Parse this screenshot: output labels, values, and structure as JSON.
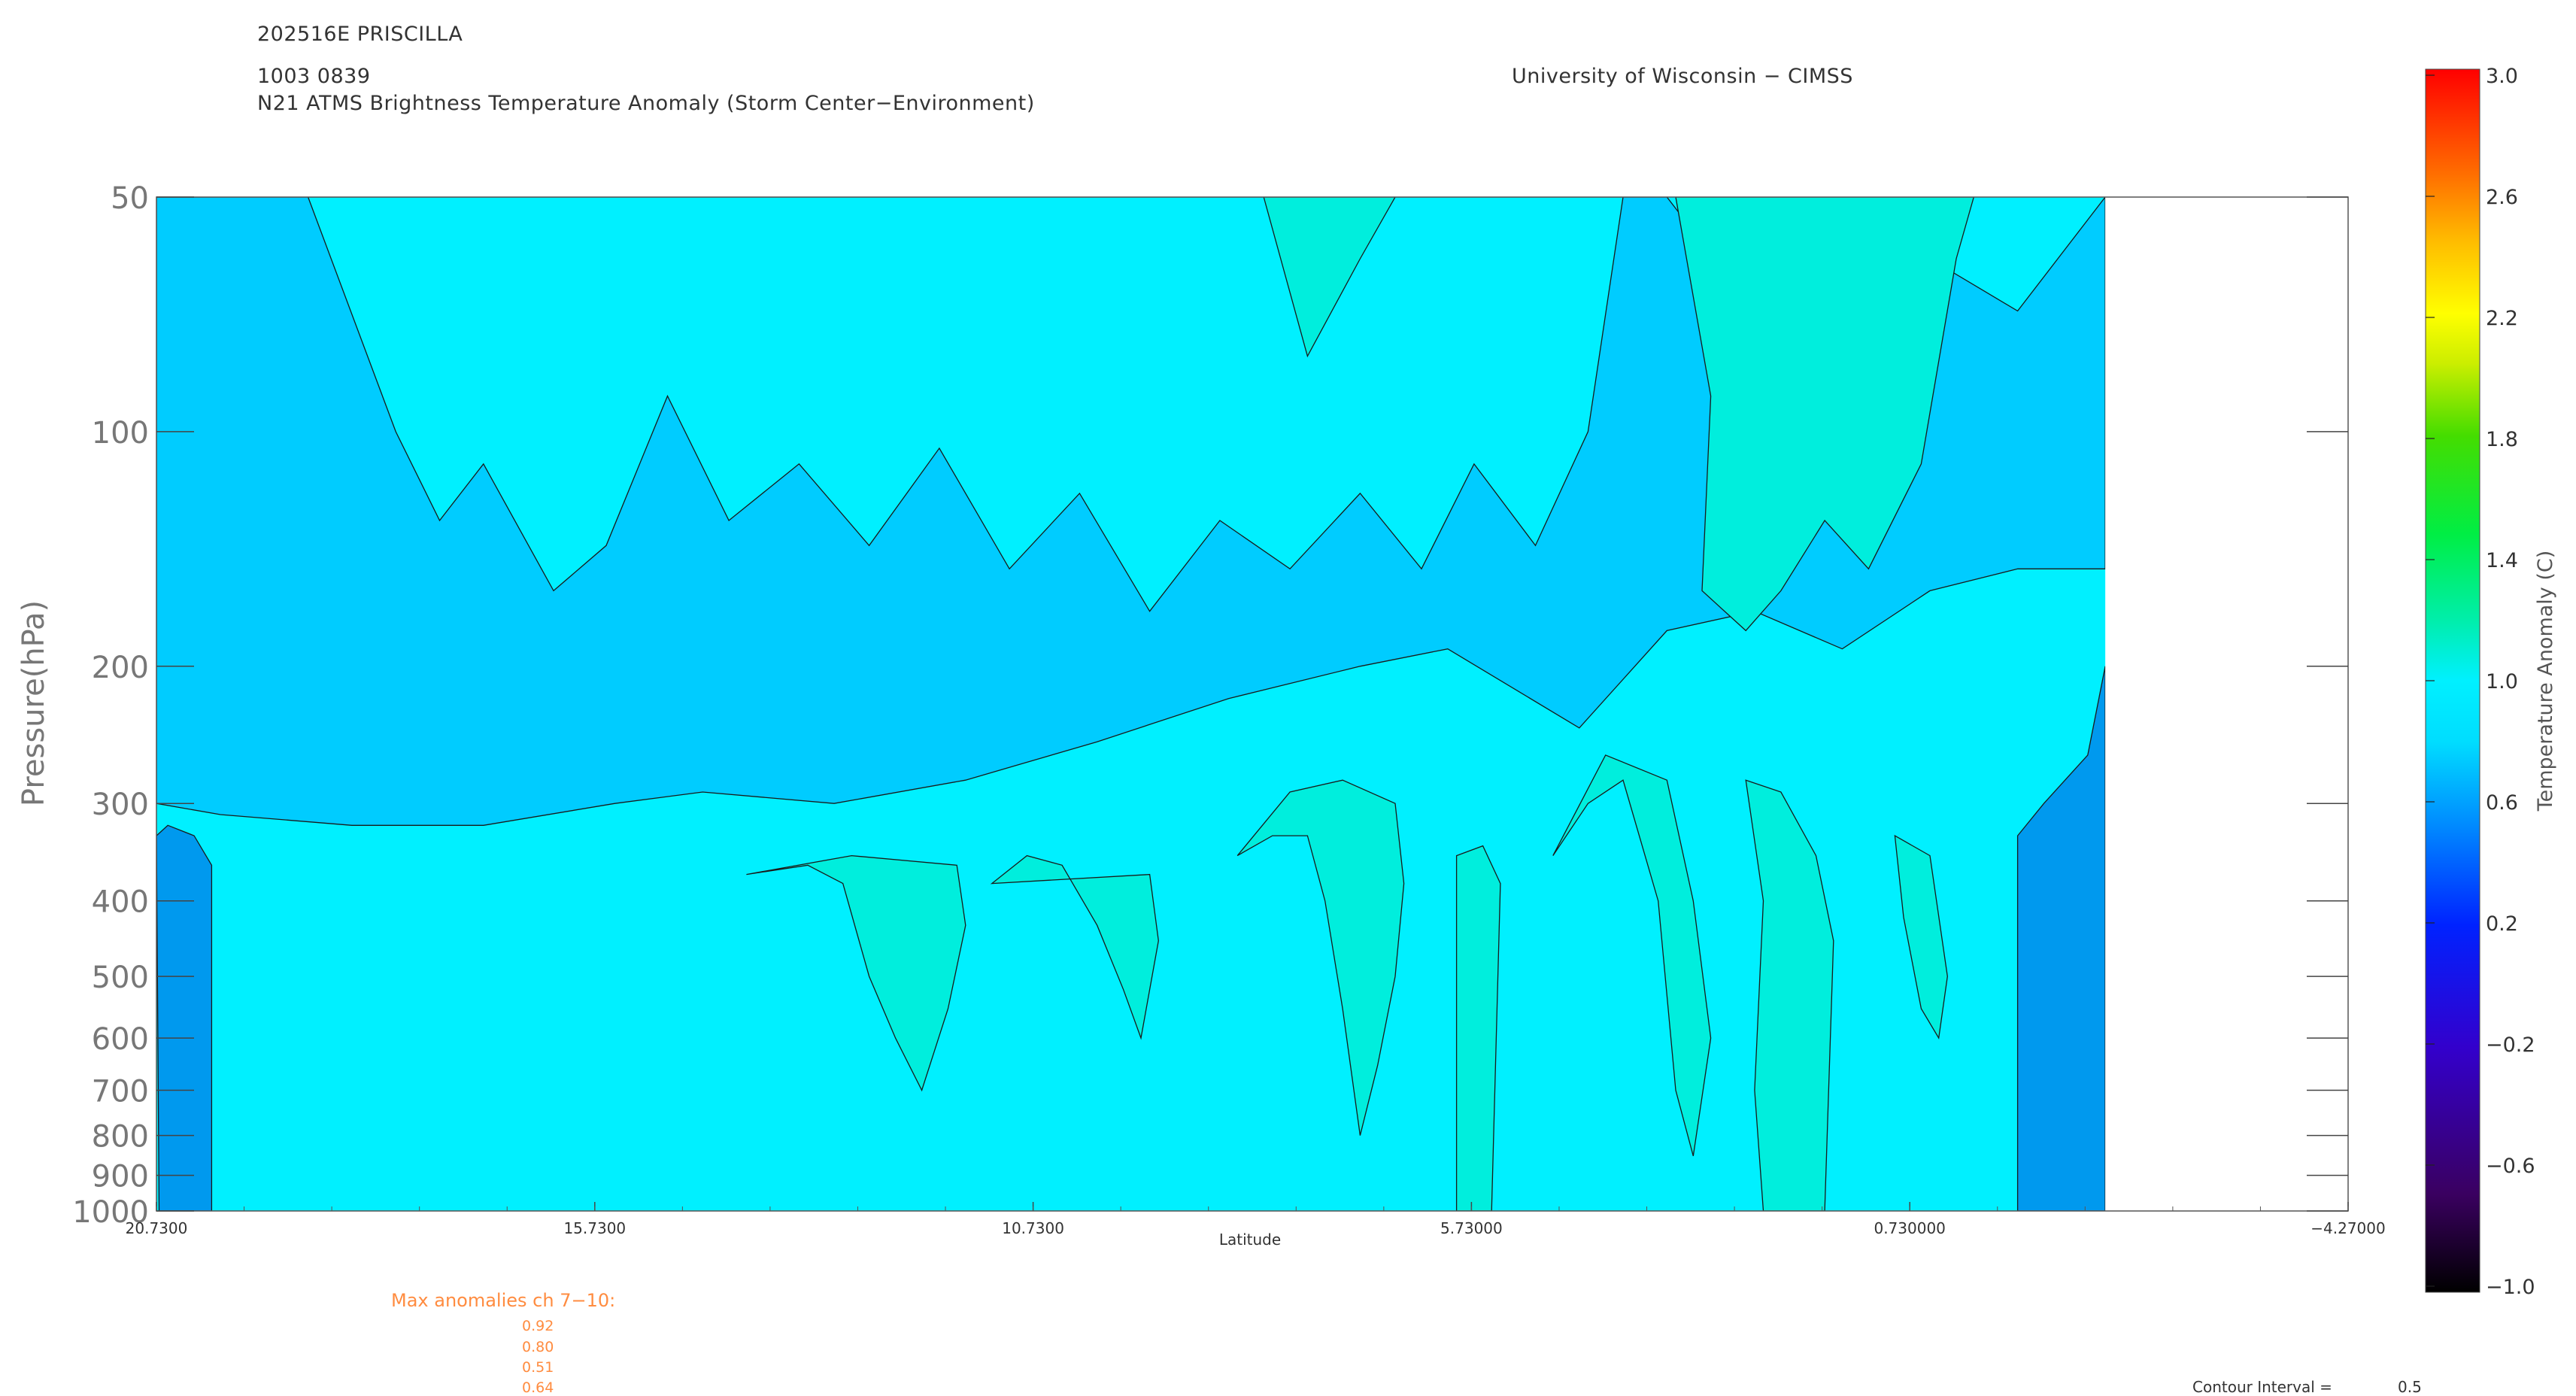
{
  "header": {
    "storm_id": "202516E PRISCILLA",
    "datetime": "1003 0839",
    "product": "N21 ATMS Brightness Temperature Anomaly (Storm Center−Environment)",
    "institution": "University of Wisconsin − CIMSS"
  },
  "chart_data": {
    "type": "heatmap",
    "ylabel": "Pressure(hPa)",
    "xlabel": "Latitude",
    "y_scale": "log",
    "y_ticks": [
      50,
      100,
      200,
      300,
      400,
      500,
      600,
      700,
      800,
      900,
      1000
    ],
    "y_tick_labels": [
      "50",
      "100",
      "200",
      "300",
      "400",
      "500",
      "600",
      "700",
      "800",
      "900",
      "1000"
    ],
    "x_ticks": [
      20.73,
      15.73,
      10.73,
      5.73,
      0.73,
      -4.27
    ],
    "x_tick_labels": [
      "20.7300",
      "15.7300",
      "10.7300",
      "5.73000",
      "0.730000",
      "−4.27000"
    ],
    "xlim": [
      20.73,
      -4.27
    ],
    "ylim": [
      1000,
      50
    ],
    "data_extent_lat": [
      20.73,
      -1.5
    ],
    "colorbar": {
      "label": "Temperature Anomaly (C)",
      "range": [
        -1.0,
        3.0
      ],
      "ticks": [
        3.0,
        2.6,
        2.2,
        1.8,
        1.4,
        1.0,
        0.6,
        0.2,
        -0.2,
        -0.6,
        -1.0
      ],
      "tick_labels": [
        "3.0",
        "2.6",
        "2.2",
        "1.8",
        "1.4",
        "1.0",
        "0.6",
        "0.2",
        "−0.2",
        "−0.6",
        "−1.0"
      ]
    },
    "contour_interval_label": "Contour Interval =",
    "contour_interval": "0.5",
    "colors": {
      "band_0_4": "#0099ee",
      "band_0_5": "#00ccff",
      "band_0_6": "#00f0ff",
      "band_0_7": "#00eedd",
      "band_0_8": "#00f5b0",
      "contour_line": "#1a1a1a",
      "orange_text": "#ff8c40"
    },
    "bands": [
      {
        "name": "upper-dark-blue",
        "level": 0.4,
        "points": [
          [
            20.73,
            50
          ],
          [
            19.0,
            50
          ],
          [
            19.5,
            70
          ],
          [
            20.0,
            110
          ],
          [
            20.4,
            85
          ],
          [
            20.73,
            70
          ]
        ]
      },
      {
        "name": "upper-blue-region",
        "level": 0.5,
        "points": [
          [
            20.73,
            110
          ],
          [
            20.73,
            300
          ],
          [
            20.0,
            310
          ],
          [
            18.5,
            320
          ],
          [
            17.0,
            320
          ],
          [
            15.5,
            300
          ],
          [
            14.5,
            290
          ],
          [
            13.0,
            300
          ],
          [
            11.5,
            280
          ],
          [
            10.0,
            250
          ],
          [
            8.5,
            220
          ],
          [
            7.0,
            200
          ],
          [
            6.0,
            190
          ],
          [
            4.5,
            240
          ],
          [
            3.5,
            180
          ],
          [
            2.5,
            170
          ],
          [
            1.5,
            190
          ],
          [
            0.5,
            160
          ],
          [
            -0.5,
            150
          ],
          [
            -1.5,
            150
          ],
          [
            -1.5,
            50
          ],
          [
            -0.5,
            70
          ],
          [
            0.5,
            60
          ],
          [
            1.5,
            100
          ],
          [
            2.5,
            70
          ],
          [
            3.5,
            50
          ],
          [
            20.73,
            50
          ]
        ]
      },
      {
        "name": "upper-light-cyan-zone",
        "level": 0.6,
        "points": [
          [
            19.0,
            50
          ],
          [
            18.0,
            100
          ],
          [
            17.5,
            130
          ],
          [
            17.0,
            110
          ],
          [
            16.2,
            160
          ],
          [
            15.6,
            140
          ],
          [
            14.9,
            90
          ],
          [
            14.2,
            130
          ],
          [
            13.4,
            110
          ],
          [
            12.6,
            140
          ],
          [
            11.8,
            105
          ],
          [
            11.0,
            150
          ],
          [
            10.2,
            120
          ],
          [
            9.4,
            170
          ],
          [
            8.6,
            130
          ],
          [
            7.8,
            150
          ],
          [
            7.0,
            120
          ],
          [
            6.3,
            150
          ],
          [
            5.7,
            110
          ],
          [
            5.0,
            140
          ],
          [
            4.4,
            100
          ],
          [
            4.0,
            50
          ]
        ]
      },
      {
        "name": "upper-green-patch-right",
        "level": 0.7,
        "points": [
          [
            3.4,
            50
          ],
          [
            3.0,
            90
          ],
          [
            3.1,
            160
          ],
          [
            2.6,
            180
          ],
          [
            2.2,
            160
          ],
          [
            1.7,
            130
          ],
          [
            1.2,
            150
          ],
          [
            0.6,
            110
          ],
          [
            0.2,
            60
          ],
          [
            0.0,
            50
          ]
        ]
      },
      {
        "name": "upper-green-patch-center",
        "level": 0.7,
        "points": [
          [
            8.1,
            50
          ],
          [
            7.6,
            80
          ],
          [
            7.0,
            60
          ],
          [
            6.6,
            50
          ]
        ]
      },
      {
        "name": "lower-green-patch-a",
        "level": 0.7,
        "points": [
          [
            14.0,
            370
          ],
          [
            13.3,
            360
          ],
          [
            12.9,
            380
          ],
          [
            12.6,
            500
          ],
          [
            12.3,
            600
          ],
          [
            12.0,
            700
          ],
          [
            11.7,
            550
          ],
          [
            11.5,
            430
          ],
          [
            11.6,
            360
          ],
          [
            12.8,
            350
          ]
        ]
      },
      {
        "name": "lower-green-patch-b",
        "level": 0.7,
        "points": [
          [
            11.2,
            380
          ],
          [
            10.8,
            350
          ],
          [
            10.4,
            360
          ],
          [
            10.0,
            430
          ],
          [
            9.7,
            520
          ],
          [
            9.5,
            600
          ],
          [
            9.3,
            450
          ],
          [
            9.4,
            370
          ]
        ]
      },
      {
        "name": "lower-green-patch-c",
        "level": 0.7,
        "points": [
          [
            8.4,
            350
          ],
          [
            8.0,
            330
          ],
          [
            7.6,
            330
          ],
          [
            7.4,
            400
          ],
          [
            7.2,
            550
          ],
          [
            7.0,
            800
          ],
          [
            6.8,
            650
          ],
          [
            6.6,
            500
          ],
          [
            6.5,
            380
          ],
          [
            6.6,
            300
          ],
          [
            7.2,
            280
          ],
          [
            7.8,
            290
          ]
        ]
      },
      {
        "name": "lower-green-patch-d",
        "level": 0.7,
        "points": [
          [
            5.9,
            350
          ],
          [
            5.6,
            340
          ],
          [
            5.4,
            380
          ],
          [
            5.5,
            1000
          ],
          [
            5.9,
            1000
          ]
        ]
      },
      {
        "name": "lower-green-patch-e",
        "level": 0.7,
        "points": [
          [
            4.8,
            350
          ],
          [
            4.4,
            300
          ],
          [
            4.0,
            280
          ],
          [
            3.6,
            400
          ],
          [
            3.4,
            700
          ],
          [
            3.2,
            850
          ],
          [
            3.0,
            600
          ],
          [
            3.2,
            400
          ],
          [
            3.5,
            280
          ],
          [
            4.2,
            260
          ]
        ]
      },
      {
        "name": "lower-green-patch-f",
        "level": 0.7,
        "points": [
          [
            2.6,
            280
          ],
          [
            2.2,
            290
          ],
          [
            1.8,
            350
          ],
          [
            1.6,
            450
          ],
          [
            1.7,
            1000
          ],
          [
            2.4,
            1000
          ],
          [
            2.5,
            700
          ],
          [
            2.4,
            400
          ]
        ]
      },
      {
        "name": "lower-green-patch-g",
        "level": 0.7,
        "points": [
          [
            0.9,
            330
          ],
          [
            0.5,
            350
          ],
          [
            0.3,
            500
          ],
          [
            0.4,
            600
          ],
          [
            0.6,
            550
          ],
          [
            0.8,
            420
          ]
        ]
      },
      {
        "name": "lower-dark-blue-right",
        "level": 0.4,
        "points": [
          [
            -0.5,
            330
          ],
          [
            -0.8,
            300
          ],
          [
            -1.3,
            260
          ],
          [
            -1.5,
            200
          ],
          [
            -1.5,
            1000
          ],
          [
            -0.5,
            1000
          ]
        ]
      },
      {
        "name": "lower-dark-blue-left",
        "level": 0.4,
        "points": [
          [
            20.6,
            320
          ],
          [
            20.3,
            330
          ],
          [
            20.1,
            360
          ],
          [
            20.1,
            1000
          ],
          [
            20.7,
            1000
          ],
          [
            20.73,
            330
          ]
        ]
      }
    ]
  },
  "max_anomalies": {
    "title": "Max anomalies ch 7−10:",
    "values": [
      "0.92",
      "0.80",
      "0.51",
      "0.64"
    ]
  }
}
